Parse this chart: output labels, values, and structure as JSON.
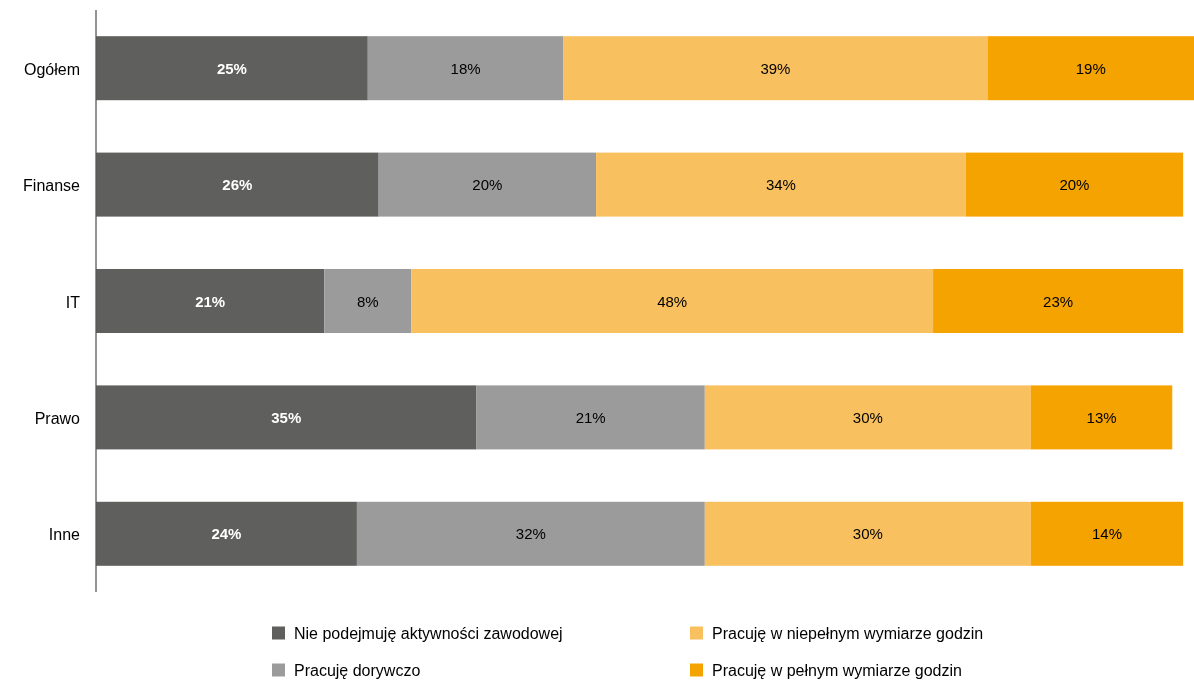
{
  "chart_data": {
    "type": "bar",
    "orientation": "horizontal",
    "stacked": true,
    "categories": [
      "Ogółem",
      "Finanse",
      "IT",
      "Prawo",
      "Inne"
    ],
    "series": [
      {
        "name": "Nie podejmuję aktywności zawodowej",
        "color": "#5f5f5d",
        "values": [
          25,
          26,
          21,
          35,
          24
        ],
        "value_labels": [
          "25%",
          "26%",
          "21%",
          "35%",
          "24%"
        ]
      },
      {
        "name": "Pracuję dorywczo",
        "color": "#9b9b9b",
        "values": [
          18,
          20,
          8,
          21,
          32
        ],
        "value_labels": [
          "18%",
          "20%",
          "8%",
          "21%",
          "32%"
        ]
      },
      {
        "name": "Pracuję w niepełnym wymiarze godzin",
        "color": "#f9c05f",
        "values": [
          39,
          34,
          48,
          30,
          30
        ],
        "value_labels": [
          "39%",
          "34%",
          "48%",
          "30%",
          "30%"
        ]
      },
      {
        "name": "Pracuję w pełnym wymiarze godzin",
        "color": "#f5a300",
        "values": [
          19,
          20,
          23,
          13,
          14
        ],
        "value_labels": [
          "19%",
          "20%",
          "23%",
          "13%",
          "14%"
        ]
      }
    ],
    "legend": "bottom"
  }
}
